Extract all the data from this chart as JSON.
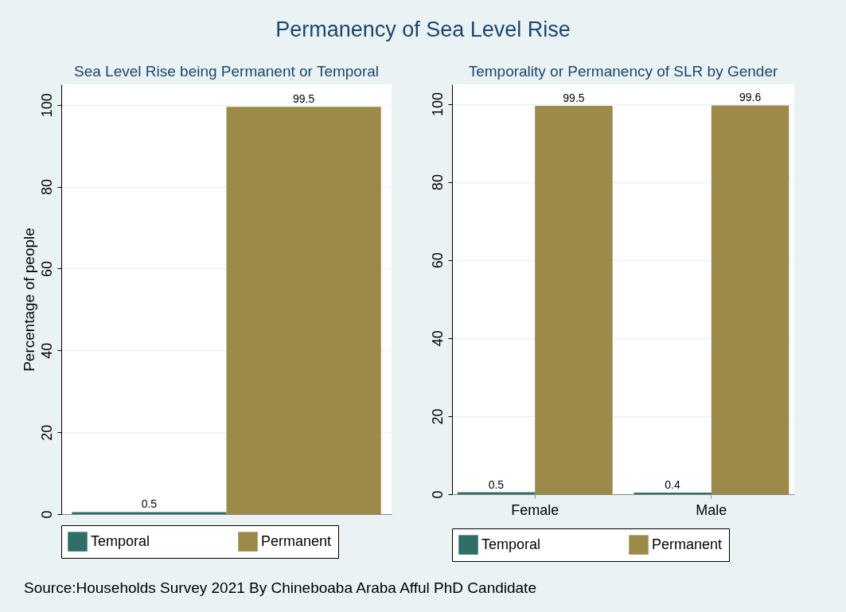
{
  "chart_data": [
    {
      "type": "other",
      "title": "Permanency of Sea Level Rise",
      "annotations": [
        "Source:Households Survey 2021 By Chineboaba Araba Afful PhD Candidate"
      ]
    },
    {
      "type": "bar",
      "title": "Sea Level Rise being Permanent or Temporal",
      "ylabel": "Percentage of people",
      "categories": [
        null
      ],
      "series": [
        {
          "name": "Temporal",
          "color": "#2e6f68",
          "values": [
            0.5
          ]
        },
        {
          "name": "Permanent",
          "color": "#9b8a48",
          "values": [
            99.5
          ]
        }
      ],
      "ylim": [
        0,
        105
      ],
      "yticks": [
        0,
        20,
        40,
        60,
        80,
        100
      ],
      "grid": "y",
      "legend": "bottom",
      "data_labels": true,
      "tick_labels": "y"
    },
    {
      "type": "bar",
      "title": "Temporality or Permanency of SLR by Gender",
      "categories": [
        "Female",
        "Male"
      ],
      "series": [
        {
          "name": "Temporal",
          "color": "#2e6f68",
          "values": [
            0.5,
            0.4
          ]
        },
        {
          "name": "Permanent",
          "color": "#9b8a48",
          "values": [
            99.5,
            99.6
          ]
        }
      ],
      "ylim": [
        0,
        105
      ],
      "yticks": [
        0,
        20,
        40,
        60,
        80,
        100
      ],
      "grid": "y",
      "legend": "bottom",
      "data_labels": true
    }
  ]
}
